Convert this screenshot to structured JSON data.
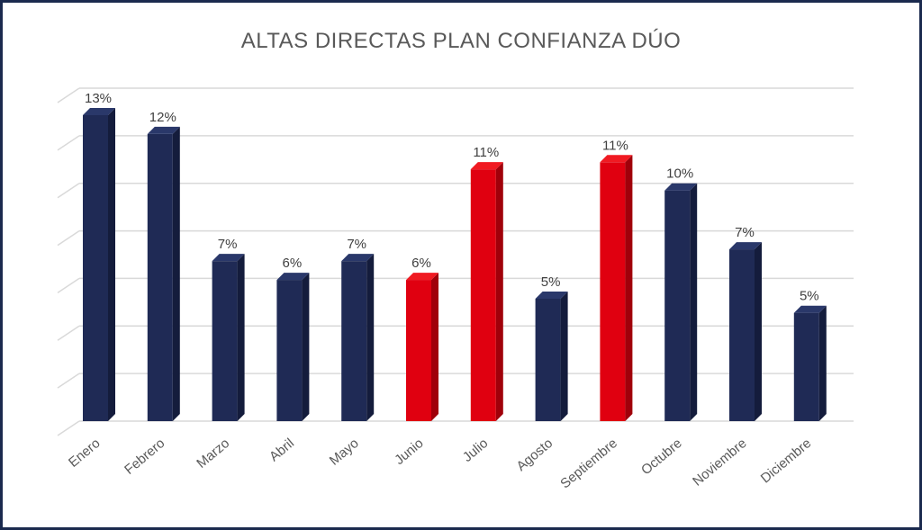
{
  "chart_data": {
    "type": "bar",
    "title": "ALTAS DIRECTAS PLAN CONFIANZA DÚO",
    "xlabel": "",
    "ylabel": "",
    "ylim": [
      0,
      0.13
    ],
    "grid": true,
    "categories": [
      "Enero",
      "Febrero",
      "Marzo",
      "Abril",
      "Mayo",
      "Junio",
      "Julio",
      "Agosto",
      "Septiembre",
      "Octubre",
      "Noviembre",
      "Diciembre"
    ],
    "values": [
      0.13,
      0.122,
      0.068,
      0.06,
      0.068,
      0.06,
      0.107,
      0.052,
      0.11,
      0.098,
      0.073,
      0.046
    ],
    "data_labels": [
      "13%",
      "12%",
      "7%",
      "6%",
      "7%",
      "6%",
      "11%",
      "5%",
      "11%",
      "10%",
      "7%",
      "5%"
    ],
    "highlighted": [
      "Junio",
      "Julio",
      "Septiembre"
    ],
    "colors": {
      "default_bar": "#1f2a55",
      "default_bar_side": "#141c3c",
      "default_bar_top": "#2a386a",
      "highlight_bar": "#e00010",
      "highlight_bar_side": "#a0000a",
      "highlight_bar_top": "#f01a22",
      "gridline": "#d9d9d9",
      "frame": "#1b2a4e"
    }
  }
}
